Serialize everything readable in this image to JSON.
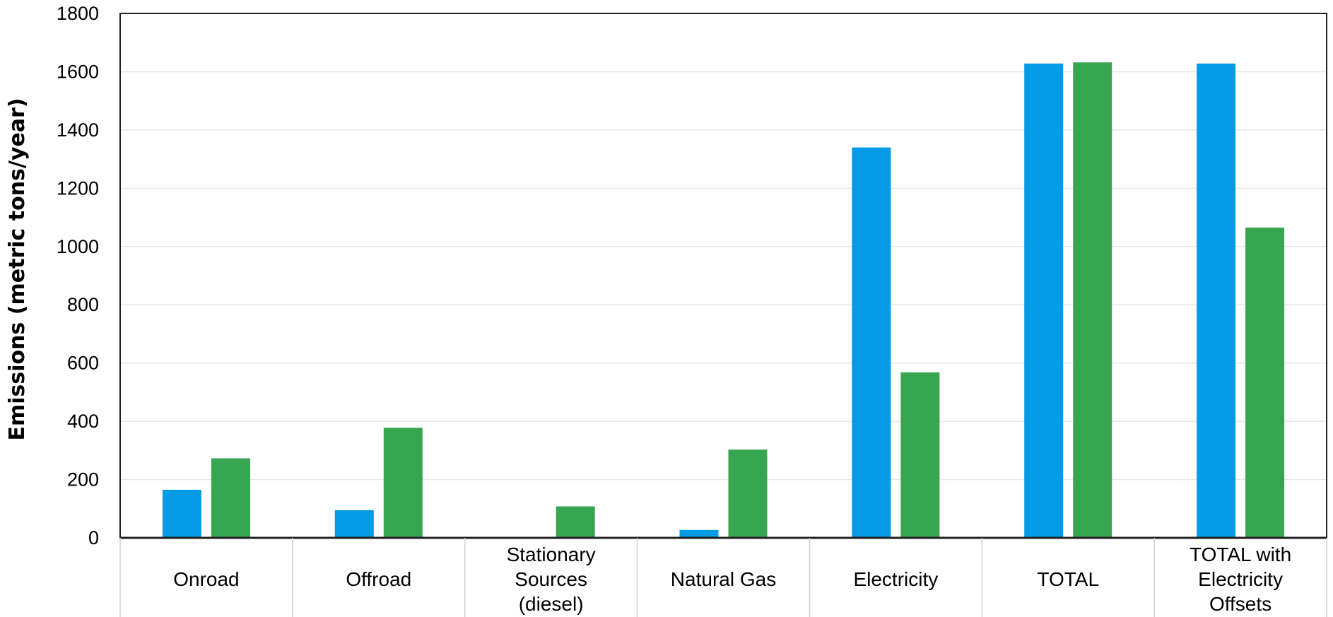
{
  "chart_data": {
    "type": "bar",
    "title": "",
    "xlabel": "",
    "ylabel": "Emissions (metric tons/year)",
    "ylim": [
      0,
      1800
    ],
    "yticks": [
      0,
      200,
      400,
      600,
      800,
      1000,
      1200,
      1400,
      1600,
      1800
    ],
    "grid": true,
    "legend": "none",
    "categories": [
      [
        "Onroad"
      ],
      [
        "Offroad"
      ],
      [
        "Stationary",
        "Sources",
        "(diesel)"
      ],
      [
        "Natural Gas"
      ],
      [
        "Electricity"
      ],
      [
        "TOTAL"
      ],
      [
        "TOTAL with",
        "Electricity",
        "Offsets"
      ]
    ],
    "series": [
      {
        "color": "#039BE5",
        "values": [
          165,
          95,
          0,
          27,
          1340,
          1628,
          1628
        ]
      },
      {
        "color": "#38A651",
        "values": [
          273,
          378,
          108,
          303,
          568,
          1632,
          1065
        ]
      }
    ]
  }
}
